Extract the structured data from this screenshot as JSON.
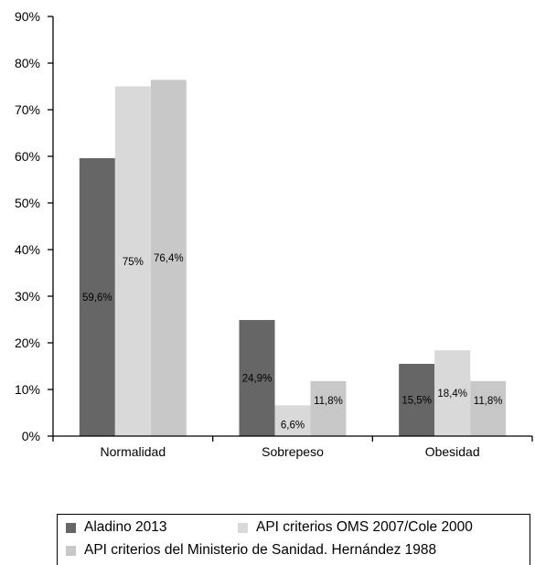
{
  "chart_data": {
    "type": "bar",
    "categories": [
      "Normalidad",
      "Sobrepeso",
      "Obesidad"
    ],
    "series": [
      {
        "name": "Aladino 2013",
        "values": [
          59.6,
          24.9,
          15.5
        ],
        "labels": [
          "59,6%",
          "24,9%",
          "15,5%"
        ],
        "color": "#666666"
      },
      {
        "name": "API criterios OMS 2007/Cole 2000",
        "values": [
          75,
          6.6,
          18.4
        ],
        "labels": [
          "75%",
          "6,6%",
          "18,4%"
        ],
        "color": "#d9d9d9"
      },
      {
        "name": "API criterios del Ministerio de Sanidad. Hernández 1988",
        "values": [
          76.4,
          11.8,
          11.8
        ],
        "labels": [
          "76,4%",
          "11,8%",
          "11,8%"
        ],
        "color": "#c8c8c8"
      }
    ],
    "yticks": [
      "0%",
      "10%",
      "20%",
      "30%",
      "40%",
      "50%",
      "60%",
      "70%",
      "80%",
      "90%"
    ],
    "ylim": [
      0,
      90
    ],
    "title": "",
    "xlabel": "",
    "ylabel": "",
    "grid": false,
    "legend_position": "bottom"
  }
}
